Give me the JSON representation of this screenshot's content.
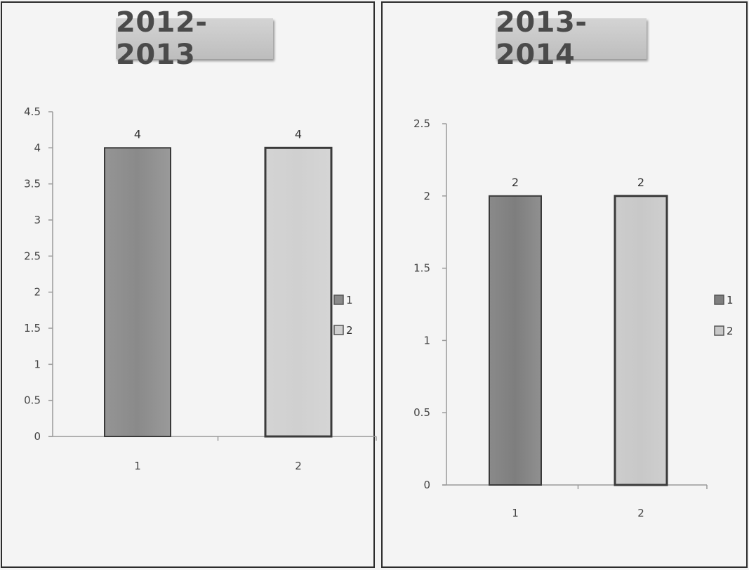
{
  "chart_data": [
    {
      "type": "bar",
      "title": "2012-2013",
      "categories": [
        "1",
        "2"
      ],
      "values": [
        4,
        4
      ],
      "data_labels": [
        "4",
        "4"
      ],
      "ylim": [
        0,
        4.5
      ],
      "yticks": [
        "0",
        "0.5",
        "1",
        "1.5",
        "2",
        "2.5",
        "3",
        "3.5",
        "4",
        "4.5"
      ],
      "legend": [
        "1",
        "2"
      ],
      "legend_position": "right",
      "grid": false,
      "colors": [
        "#8a8a8a",
        "#d0d0d0"
      ]
    },
    {
      "type": "bar",
      "title": "2013-2014",
      "categories": [
        "1",
        "2"
      ],
      "values": [
        2,
        2
      ],
      "data_labels": [
        "2",
        "2"
      ],
      "ylim": [
        0,
        2.5
      ],
      "yticks": [
        "0",
        "0.5",
        "1",
        "1.5",
        "2",
        "2.5"
      ],
      "legend": [
        "1",
        "2"
      ],
      "legend_position": "right",
      "grid": false,
      "colors": [
        "#7e7e7e",
        "#c8c8c8"
      ]
    }
  ]
}
